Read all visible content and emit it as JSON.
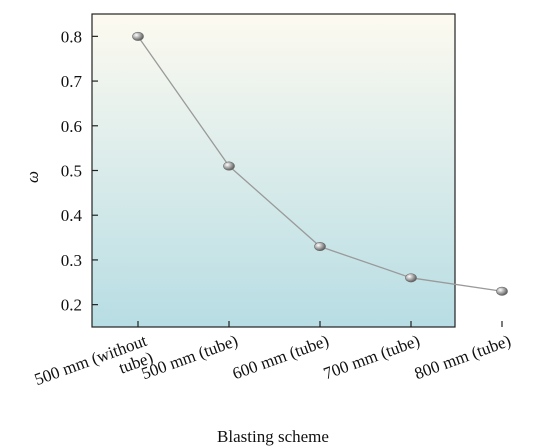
{
  "chart_data": {
    "type": "line",
    "title": "",
    "xlabel": "Blasting scheme",
    "ylabel": "ω",
    "categories": [
      "500 mm (without tube)",
      "500 mm (tube)",
      "600 mm (tube)",
      "700 mm (tube)",
      "800 mm (tube)"
    ],
    "category_label_lines": [
      [
        "500 mm (without",
        "tube)"
      ],
      [
        "500 mm (tube)"
      ],
      [
        "600 mm (tube)"
      ],
      [
        "700 mm (tube)"
      ],
      [
        "800 mm (tube)"
      ]
    ],
    "series": [
      {
        "values": [
          0.8,
          0.51,
          0.33,
          0.26,
          0.23
        ]
      }
    ],
    "ylim": [
      0.15,
      0.85
    ],
    "yticks": [
      0.2,
      0.3,
      0.4,
      0.5,
      0.6,
      0.7,
      0.8
    ],
    "ytick_labels": [
      "0.2",
      "0.3",
      "0.4",
      "0.5",
      "0.6",
      "0.7",
      "0.8"
    ],
    "grid": false,
    "legend": "none",
    "colors": {
      "background_top": "#fdfaf0",
      "background_bottom": "#b7dde4",
      "line": "#9a9a9a",
      "marker": "#8f8f8f",
      "axis": "#222222"
    }
  }
}
